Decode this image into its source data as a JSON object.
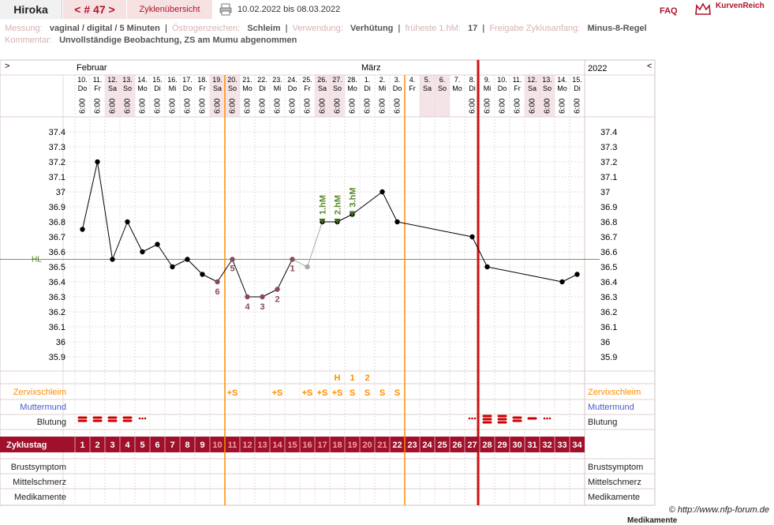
{
  "header": {
    "name": "Hiroka",
    "cycle_label": "< # 47 >",
    "overview_label": "Zyklenübersicht",
    "date_range": "10.02.2022 bis 08.03.2022",
    "faq_label": "FAQ",
    "brand_label": "KurvenReich"
  },
  "meta": {
    "messung_label": "Messung:",
    "messung_value": "vaginal / digital / 5 Minuten",
    "oestrogen_label": "Östrogenzeichen:",
    "oestrogen_value": "Schleim",
    "verwendung_label": "Verwendung:",
    "verwendung_value": "Verhütung",
    "frueheste_label": "früheste 1.hM:",
    "frueheste_value": "17",
    "freigabe_label": "Freigabe Zyklusanfang:",
    "freigabe_value": "Minus-8-Regel",
    "kommentar_label": "Kommentar:",
    "kommentar_value": "Unvollständige Beobachtung, ZS am Mumu abgenommen"
  },
  "nav": {
    "left": ">",
    "right": "<"
  },
  "months": [
    {
      "day_index": 0,
      "label": "Februar"
    },
    {
      "day_index": 19,
      "label": "März"
    }
  ],
  "year_label": "2022",
  "footer": "© http://www.nfp-forum.de",
  "footer_overflow": "Medikamente",
  "colors": {
    "curve": "#000000",
    "hl_line": "#4a7a1a",
    "interpretation": "#ff8c00",
    "cycle_start": "#cc1111",
    "bar": "#a0102a",
    "menses": "#cc0000",
    "pink": "#f4e4e8"
  },
  "row_labels": {
    "zervix": "Zervixschleim",
    "mumu": "Muttermund",
    "blutung": "Blutung",
    "zyklustag": "Zyklustag",
    "brust": "Brustsymptom",
    "mittel": "Mittelschmerz",
    "medi": "Medikamente"
  },
  "hl_label": "HL",
  "chart_data": {
    "type": "line",
    "title": "",
    "xlabel": "Zyklustag",
    "ylabel": "",
    "ylim": [
      35.8,
      37.5
    ],
    "yticks": [
      35.9,
      36,
      36.1,
      36.2,
      36.3,
      36.4,
      36.5,
      36.6,
      36.7,
      36.8,
      36.9,
      37,
      37.1,
      37.2,
      37.3,
      37.4
    ],
    "grid": true,
    "dates": [
      "10.",
      "11.",
      "12.",
      "13.",
      "14.",
      "15.",
      "16.",
      "17.",
      "18.",
      "19.",
      "20.",
      "21.",
      "22.",
      "23.",
      "24.",
      "25.",
      "26.",
      "27.",
      "28.",
      "1.",
      "2.",
      "3.",
      "4.",
      "5.",
      "6.",
      "7.",
      "8.",
      "9.",
      "10.",
      "11.",
      "12.",
      "13.",
      "14.",
      "15."
    ],
    "weekdays": [
      "Do",
      "Fr",
      "Sa",
      "So",
      "Mo",
      "Di",
      "Mi",
      "Do",
      "Fr",
      "Sa",
      "So",
      "Mo",
      "Di",
      "Mi",
      "Do",
      "Fr",
      "Sa",
      "So",
      "Mo",
      "Di",
      "Mi",
      "Do",
      "Fr",
      "Sa",
      "So",
      "Mo",
      "Di",
      "Mi",
      "Do",
      "Fr",
      "Sa",
      "So",
      "Mo",
      "Di"
    ],
    "times": [
      "6:00",
      "6:00",
      "6:00",
      "6:00",
      "6:00",
      "6:00",
      "6:00",
      "6:00",
      "6:00",
      "6:00",
      "6:00",
      "6:00",
      "6:00",
      "6:00",
      "6:00",
      "6:00",
      "6:00",
      "6:00",
      "6:00",
      "6:00",
      "6:00",
      "6:00",
      "",
      "",
      "",
      "",
      "6:00",
      "6:00",
      "6:00",
      "6:00",
      "6:00",
      "6:00",
      "6:00",
      "6:00"
    ],
    "weekend": [
      false,
      false,
      true,
      true,
      false,
      false,
      false,
      false,
      false,
      true,
      true,
      false,
      false,
      false,
      false,
      false,
      true,
      true,
      false,
      false,
      false,
      false,
      false,
      true,
      true,
      false,
      false,
      false,
      false,
      false,
      true,
      true,
      false,
      false
    ],
    "temperatures": [
      36.75,
      37.2,
      36.55,
      36.8,
      36.6,
      36.65,
      36.5,
      36.55,
      36.45,
      36.4,
      36.55,
      36.3,
      36.3,
      36.35,
      36.55,
      36.5,
      36.8,
      36.8,
      36.85,
      null,
      37.0,
      36.8,
      null,
      null,
      null,
      null,
      36.7,
      36.5,
      null,
      null,
      null,
      null,
      36.4,
      36.45
    ],
    "excluded_days": [
      15
    ],
    "hl_value": 36.55,
    "lower_counts": [
      {
        "day": 9,
        "label": "6"
      },
      {
        "day": 10,
        "label": "5"
      },
      {
        "day": 11,
        "label": "4"
      },
      {
        "day": 12,
        "label": "3"
      },
      {
        "day": 13,
        "label": "2"
      },
      {
        "day": 14,
        "label": "1"
      }
    ],
    "high_marks": [
      {
        "day": 16,
        "label": "1.hM"
      },
      {
        "day": 17,
        "label": "2.hM"
      },
      {
        "day": 18,
        "label": "3.hM"
      }
    ],
    "cycle_days": [
      1,
      2,
      3,
      4,
      5,
      6,
      7,
      8,
      9,
      10,
      11,
      12,
      13,
      14,
      15,
      16,
      17,
      18,
      19,
      20,
      21,
      22,
      23,
      24,
      25,
      26,
      27,
      28,
      29,
      30,
      31,
      32,
      33,
      34
    ],
    "pink_cycle_days": [
      10,
      11,
      12,
      13,
      14,
      15,
      16,
      17,
      18,
      19,
      20,
      21
    ],
    "interpretation_days": [
      9,
      21
    ],
    "new_cycle_day": 27,
    "peak_labels": [
      {
        "day": 17,
        "label": "H"
      },
      {
        "day": 18,
        "label": "1"
      },
      {
        "day": 19,
        "label": "2"
      }
    ],
    "mucus": [
      {
        "day": 10,
        "label": "+S"
      },
      {
        "day": 13,
        "label": "+S"
      },
      {
        "day": 15,
        "label": "+S"
      },
      {
        "day": 16,
        "label": "+S"
      },
      {
        "day": 17,
        "label": "+S"
      },
      {
        "day": 18,
        "label": "S"
      },
      {
        "day": 19,
        "label": "S"
      },
      {
        "day": 20,
        "label": "S"
      },
      {
        "day": 21,
        "label": "S"
      }
    ],
    "bleeding": [
      {
        "day": 0,
        "level": 2
      },
      {
        "day": 1,
        "level": 2
      },
      {
        "day": 2,
        "level": 2
      },
      {
        "day": 3,
        "level": 2
      },
      {
        "day": 4,
        "level": 0
      },
      {
        "day": 26,
        "level": 0
      },
      {
        "day": 27,
        "level": 3
      },
      {
        "day": 28,
        "level": 3
      },
      {
        "day": 29,
        "level": 2
      },
      {
        "day": 30,
        "level": 1
      },
      {
        "day": 31,
        "level": 0
      }
    ]
  }
}
